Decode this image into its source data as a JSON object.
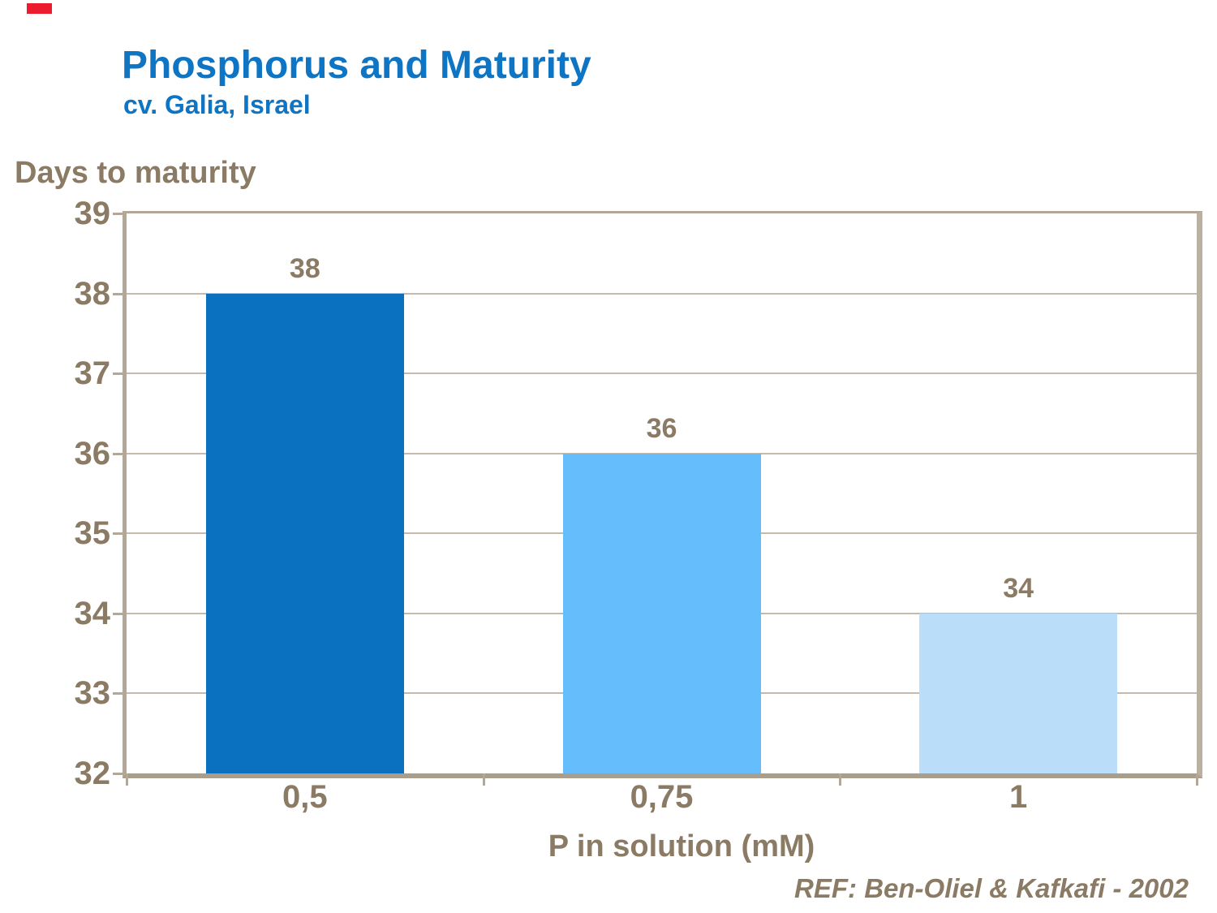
{
  "slide": {
    "title": "Phosphorus and Maturity",
    "subtitle": "cv. Galia, Israel",
    "reference": "REF: Ben-Oliel & Kafkafi - 2002",
    "title_color": "#0E74C4",
    "accent_bar_color": "#EC1C2E",
    "background_color": "#FFFFFF"
  },
  "chart_data": {
    "type": "bar",
    "title": "",
    "ylabel": "Days to maturity",
    "xlabel": "P in solution (mM)",
    "categories": [
      "0,5",
      "0,75",
      "1"
    ],
    "values": [
      38,
      36,
      34
    ],
    "data_labels": [
      "38",
      "36",
      "34"
    ],
    "bar_colors": [
      "#0971BF",
      "#65BDFB",
      "#BADDF9"
    ],
    "ylim": [
      32,
      39
    ],
    "ytick_step": 1,
    "yticks": [
      39,
      38,
      37,
      36,
      35,
      34,
      33,
      32
    ],
    "grid": true,
    "legend": false,
    "text_color": "#8B7A64",
    "axis_color": "#B3A795",
    "gridline_color": "#C6BAAC"
  }
}
